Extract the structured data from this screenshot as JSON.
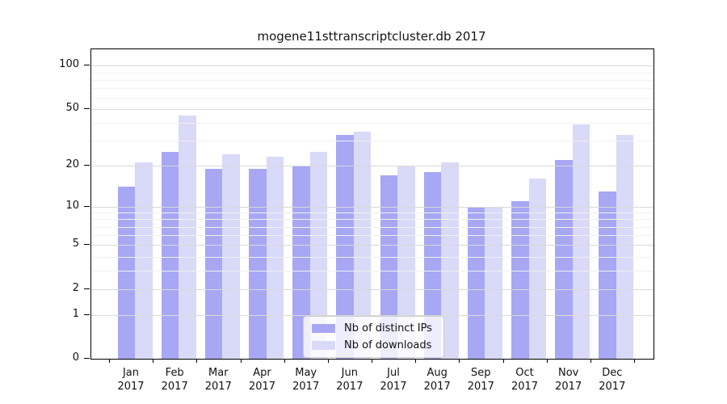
{
  "title": "mogene11sttranscriptcluster.db 2017",
  "chart_data": {
    "type": "bar",
    "title": "mogene11sttranscriptcluster.db 2017",
    "categories": [
      "Jan 2017",
      "Feb 2017",
      "Mar 2017",
      "Apr 2017",
      "May 2017",
      "Jun 2017",
      "Jul 2017",
      "Aug 2017",
      "Sep 2017",
      "Oct 2017",
      "Nov 2017",
      "Dec 2017"
    ],
    "month_labels": [
      "Jan",
      "Feb",
      "Mar",
      "Apr",
      "May",
      "Jun",
      "Jul",
      "Aug",
      "Sep",
      "Oct",
      "Nov",
      "Dec"
    ],
    "year_label": "2017",
    "series": [
      {
        "name": "Nb of distinct IPs",
        "color": "#a7a7f4",
        "values": [
          14,
          25,
          19,
          19,
          20,
          33,
          17,
          18,
          10,
          11,
          22,
          13
        ]
      },
      {
        "name": "Nb of downloads",
        "color": "#d9d9f8",
        "values": [
          21,
          45,
          24,
          23,
          25,
          35,
          20,
          21,
          10,
          16,
          39,
          33
        ]
      }
    ],
    "xlabel": "",
    "ylabel": "",
    "yscale": "log1p",
    "ylim": [
      0,
      130
    ],
    "yticks": [
      0,
      1,
      2,
      5,
      10,
      20,
      50,
      100
    ],
    "minor_yticks": [
      3,
      4,
      6,
      7,
      8,
      9,
      30,
      40,
      60,
      70,
      80,
      90
    ],
    "grid": true,
    "legend_position": "lower center"
  }
}
